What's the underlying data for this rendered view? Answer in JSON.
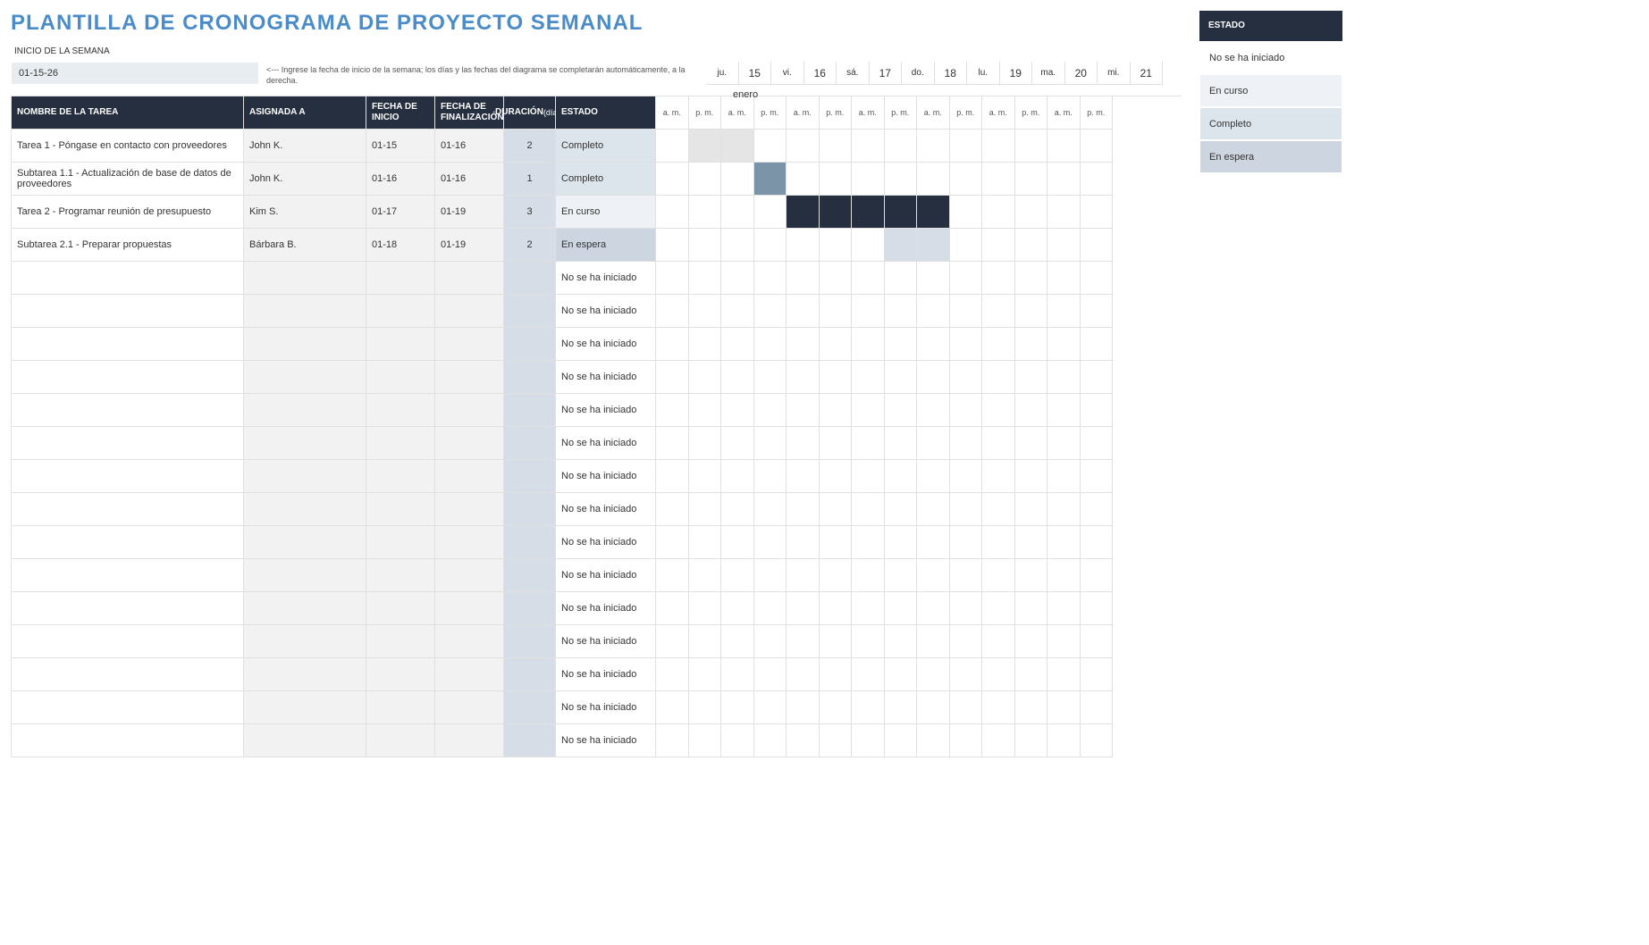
{
  "title": "PLANTILLA DE CRONOGRAMA DE PROYECTO SEMANAL",
  "meta": {
    "week_start_label": "INICIO DE LA SEMANA",
    "week_start_value": "01-15-26",
    "hint": "<--- Ingrese la fecha de inicio de la semana; los días y las fechas del diagrama se completarán automáticamente, a la derecha.",
    "month": "enero"
  },
  "columns": {
    "task": "NOMBRE DE LA TAREA",
    "assigned": "ASIGNADA A",
    "start": "FECHA DE INICIO",
    "end": "FECHA DE FINALIZACIÓN",
    "duration": "DURACIÓN",
    "duration_sub": "(días)",
    "status": "ESTADO"
  },
  "days": [
    {
      "name": "ju.",
      "num": "15"
    },
    {
      "name": "vi.",
      "num": "16"
    },
    {
      "name": "sá.",
      "num": "17"
    },
    {
      "name": "do.",
      "num": "18"
    },
    {
      "name": "lu.",
      "num": "19"
    },
    {
      "name": "ma.",
      "num": "20"
    },
    {
      "name": "mi.",
      "num": "21"
    }
  ],
  "ampm": {
    "am": "a. m.",
    "pm": "p. m."
  },
  "status_values": {
    "not_started": "No se ha iniciado",
    "in_progress": "En curso",
    "complete": "Completo",
    "on_hold": "En espera"
  },
  "status_colors": {
    "not_started": "#ffffff",
    "in_progress": "#eef2f6",
    "complete": "#dde5ec",
    "on_hold": "#cdd6e0"
  },
  "gantt_colors": {
    "complete_light": "#e5e5e5",
    "complete_dark": "#7b94a8",
    "in_progress": "#252f3f",
    "on_hold": "#d6dde6"
  },
  "tasks": [
    {
      "name": "Tarea 1 - Póngase en contacto con proveedores",
      "assigned": "John K.",
      "start": "01-15",
      "end": "01-16",
      "duration": "2",
      "status": "complete",
      "gantt": [
        null,
        "complete_light",
        "complete_light",
        null,
        null,
        null,
        null,
        null,
        null,
        null,
        null,
        null,
        null,
        null
      ]
    },
    {
      "name": "Subtarea 1.1 - Actualización de base de datos de proveedores",
      "assigned": "John K.",
      "start": "01-16",
      "end": "01-16",
      "duration": "1",
      "status": "complete",
      "gantt": [
        null,
        null,
        null,
        "complete_dark",
        null,
        null,
        null,
        null,
        null,
        null,
        null,
        null,
        null,
        null
      ]
    },
    {
      "name": "Tarea 2 - Programar reunión de presupuesto",
      "assigned": "Kim S.",
      "start": "01-17",
      "end": "01-19",
      "duration": "3",
      "status": "in_progress",
      "gantt": [
        null,
        null,
        null,
        null,
        "in_progress",
        "in_progress",
        "in_progress",
        "in_progress",
        "in_progress",
        null,
        null,
        null,
        null,
        null
      ]
    },
    {
      "name": "Subtarea 2.1 - Preparar propuestas",
      "assigned": "Bárbara B.",
      "start": "01-18",
      "end": "01-19",
      "duration": "2",
      "status": "on_hold",
      "gantt": [
        null,
        null,
        null,
        null,
        null,
        null,
        null,
        "on_hold",
        "on_hold",
        null,
        null,
        null,
        null,
        null
      ]
    },
    {
      "name": "",
      "assigned": "",
      "start": "",
      "end": "",
      "duration": "",
      "status": "not_started",
      "gantt": [
        null,
        null,
        null,
        null,
        null,
        null,
        null,
        null,
        null,
        null,
        null,
        null,
        null,
        null
      ]
    },
    {
      "name": "",
      "assigned": "",
      "start": "",
      "end": "",
      "duration": "",
      "status": "not_started",
      "gantt": [
        null,
        null,
        null,
        null,
        null,
        null,
        null,
        null,
        null,
        null,
        null,
        null,
        null,
        null
      ]
    },
    {
      "name": "",
      "assigned": "",
      "start": "",
      "end": "",
      "duration": "",
      "status": "not_started",
      "gantt": [
        null,
        null,
        null,
        null,
        null,
        null,
        null,
        null,
        null,
        null,
        null,
        null,
        null,
        null
      ]
    },
    {
      "name": "",
      "assigned": "",
      "start": "",
      "end": "",
      "duration": "",
      "status": "not_started",
      "gantt": [
        null,
        null,
        null,
        null,
        null,
        null,
        null,
        null,
        null,
        null,
        null,
        null,
        null,
        null
      ]
    },
    {
      "name": "",
      "assigned": "",
      "start": "",
      "end": "",
      "duration": "",
      "status": "not_started",
      "gantt": [
        null,
        null,
        null,
        null,
        null,
        null,
        null,
        null,
        null,
        null,
        null,
        null,
        null,
        null
      ]
    },
    {
      "name": "",
      "assigned": "",
      "start": "",
      "end": "",
      "duration": "",
      "status": "not_started",
      "gantt": [
        null,
        null,
        null,
        null,
        null,
        null,
        null,
        null,
        null,
        null,
        null,
        null,
        null,
        null
      ]
    },
    {
      "name": "",
      "assigned": "",
      "start": "",
      "end": "",
      "duration": "",
      "status": "not_started",
      "gantt": [
        null,
        null,
        null,
        null,
        null,
        null,
        null,
        null,
        null,
        null,
        null,
        null,
        null,
        null
      ]
    },
    {
      "name": "",
      "assigned": "",
      "start": "",
      "end": "",
      "duration": "",
      "status": "not_started",
      "gantt": [
        null,
        null,
        null,
        null,
        null,
        null,
        null,
        null,
        null,
        null,
        null,
        null,
        null,
        null
      ]
    },
    {
      "name": "",
      "assigned": "",
      "start": "",
      "end": "",
      "duration": "",
      "status": "not_started",
      "gantt": [
        null,
        null,
        null,
        null,
        null,
        null,
        null,
        null,
        null,
        null,
        null,
        null,
        null,
        null
      ]
    },
    {
      "name": "",
      "assigned": "",
      "start": "",
      "end": "",
      "duration": "",
      "status": "not_started",
      "gantt": [
        null,
        null,
        null,
        null,
        null,
        null,
        null,
        null,
        null,
        null,
        null,
        null,
        null,
        null
      ]
    },
    {
      "name": "",
      "assigned": "",
      "start": "",
      "end": "",
      "duration": "",
      "status": "not_started",
      "gantt": [
        null,
        null,
        null,
        null,
        null,
        null,
        null,
        null,
        null,
        null,
        null,
        null,
        null,
        null
      ]
    },
    {
      "name": "",
      "assigned": "",
      "start": "",
      "end": "",
      "duration": "",
      "status": "not_started",
      "gantt": [
        null,
        null,
        null,
        null,
        null,
        null,
        null,
        null,
        null,
        null,
        null,
        null,
        null,
        null
      ]
    },
    {
      "name": "",
      "assigned": "",
      "start": "",
      "end": "",
      "duration": "",
      "status": "not_started",
      "gantt": [
        null,
        null,
        null,
        null,
        null,
        null,
        null,
        null,
        null,
        null,
        null,
        null,
        null,
        null
      ]
    },
    {
      "name": "",
      "assigned": "",
      "start": "",
      "end": "",
      "duration": "",
      "status": "not_started",
      "gantt": [
        null,
        null,
        null,
        null,
        null,
        null,
        null,
        null,
        null,
        null,
        null,
        null,
        null,
        null
      ]
    },
    {
      "name": "",
      "assigned": "",
      "start": "",
      "end": "",
      "duration": "",
      "status": "not_started",
      "gantt": [
        null,
        null,
        null,
        null,
        null,
        null,
        null,
        null,
        null,
        null,
        null,
        null,
        null,
        null
      ]
    }
  ],
  "legend": {
    "header": "ESTADO",
    "items": [
      "not_started",
      "in_progress",
      "complete",
      "on_hold"
    ]
  }
}
